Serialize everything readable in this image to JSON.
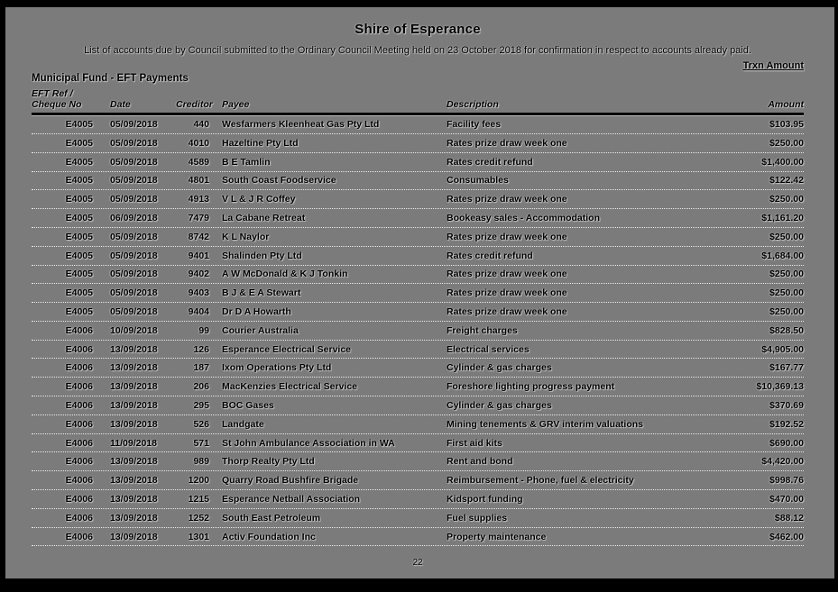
{
  "colors": {
    "page_bg": "#7b7b7b",
    "frame": "#000000",
    "text": "#000000"
  },
  "document": {
    "title": "Shire of Esperance",
    "subtitle": "List of accounts due by Council submitted to the Ordinary Council Meeting held on 23 October 2018 for confirmation in respect to accounts already paid.",
    "trxn_amount_label": "Trxn Amount",
    "section_heading": "Municipal Fund - EFT Payments",
    "page_number": "22"
  },
  "table": {
    "header": {
      "eft_line1": "EFT Ref /",
      "eft_line2": "Cheque No",
      "date": "Date",
      "creditor": "Creditor",
      "payee": "Payee",
      "description": "Description",
      "amount": "Amount"
    },
    "rows": [
      {
        "eft": "E4005",
        "date": "05/09/2018",
        "creditor": "440",
        "payee": "Wesfarmers Kleenheat Gas Pty Ltd",
        "description": "Facility fees",
        "amount": "$103.95"
      },
      {
        "eft": "E4005",
        "date": "05/09/2018",
        "creditor": "4010",
        "payee": "Hazeltine Pty Ltd",
        "description": "Rates prize draw week one",
        "amount": "$250.00"
      },
      {
        "eft": "E4005",
        "date": "05/09/2018",
        "creditor": "4589",
        "payee": "B E Tamlin",
        "description": "Rates credit refund",
        "amount": "$1,400.00"
      },
      {
        "eft": "E4005",
        "date": "05/09/2018",
        "creditor": "4801",
        "payee": "South Coast Foodservice",
        "description": "Consumables",
        "amount": "$122.42"
      },
      {
        "eft": "E4005",
        "date": "05/09/2018",
        "creditor": "4913",
        "payee": "V L & J R Coffey",
        "description": "Rates prize draw week one",
        "amount": "$250.00"
      },
      {
        "eft": "E4005",
        "date": "06/09/2018",
        "creditor": "7479",
        "payee": "La Cabane Retreat",
        "description": "Bookeasy sales - Accommodation",
        "amount": "$1,161.20"
      },
      {
        "eft": "E4005",
        "date": "05/09/2018",
        "creditor": "8742",
        "payee": "K L Naylor",
        "description": "Rates prize draw week one",
        "amount": "$250.00"
      },
      {
        "eft": "E4005",
        "date": "05/09/2018",
        "creditor": "9401",
        "payee": "Shalinden Pty Ltd",
        "description": "Rates credit refund",
        "amount": "$1,684.00"
      },
      {
        "eft": "E4005",
        "date": "05/09/2018",
        "creditor": "9402",
        "payee": "A W McDonald & K J Tonkin",
        "description": "Rates prize draw week one",
        "amount": "$250.00"
      },
      {
        "eft": "E4005",
        "date": "05/09/2018",
        "creditor": "9403",
        "payee": "B J & E A Stewart",
        "description": "Rates prize draw week one",
        "amount": "$250.00"
      },
      {
        "eft": "E4005",
        "date": "05/09/2018",
        "creditor": "9404",
        "payee": "Dr D A Howarth",
        "description": "Rates prize draw week one",
        "amount": "$250.00"
      },
      {
        "eft": "E4006",
        "date": "10/09/2018",
        "creditor": "99",
        "payee": "Courier Australia",
        "description": "Freight charges",
        "amount": "$828.50"
      },
      {
        "eft": "E4006",
        "date": "13/09/2018",
        "creditor": "126",
        "payee": "Esperance Electrical Service",
        "description": "Electrical services",
        "amount": "$4,905.00"
      },
      {
        "eft": "E4006",
        "date": "13/09/2018",
        "creditor": "187",
        "payee": "Ixom Operations Pty Ltd",
        "description": "Cylinder & gas charges",
        "amount": "$167.77"
      },
      {
        "eft": "E4006",
        "date": "13/09/2018",
        "creditor": "206",
        "payee": "MacKenzies Electrical Service",
        "description": "Foreshore lighting progress payment",
        "amount": "$10,369.13"
      },
      {
        "eft": "E4006",
        "date": "13/09/2018",
        "creditor": "295",
        "payee": "BOC Gases",
        "description": "Cylinder & gas charges",
        "amount": "$370.69"
      },
      {
        "eft": "E4006",
        "date": "13/09/2018",
        "creditor": "526",
        "payee": "Landgate",
        "description": "Mining tenements & GRV interim valuations",
        "amount": "$192.52"
      },
      {
        "eft": "E4006",
        "date": "11/09/2018",
        "creditor": "571",
        "payee": "St John Ambulance Association in WA",
        "description": "First aid kits",
        "amount": "$690.00"
      },
      {
        "eft": "E4006",
        "date": "13/09/2018",
        "creditor": "989",
        "payee": "Thorp Realty Pty Ltd",
        "description": "Rent and bond",
        "amount": "$4,420.00"
      },
      {
        "eft": "E4006",
        "date": "13/09/2018",
        "creditor": "1200",
        "payee": "Quarry Road Bushfire Brigade",
        "description": "Reimbursement - Phone, fuel & electricity",
        "amount": "$998.76"
      },
      {
        "eft": "E4006",
        "date": "13/09/2018",
        "creditor": "1215",
        "payee": "Esperance Netball Association",
        "description": "Kidsport funding",
        "amount": "$470.00"
      },
      {
        "eft": "E4006",
        "date": "13/09/2018",
        "creditor": "1252",
        "payee": "South East Petroleum",
        "description": "Fuel supplies",
        "amount": "$88.12"
      },
      {
        "eft": "E4006",
        "date": "13/09/2018",
        "creditor": "1301",
        "payee": "Activ Foundation Inc",
        "description": "Property maintenance",
        "amount": "$462.00"
      }
    ]
  }
}
